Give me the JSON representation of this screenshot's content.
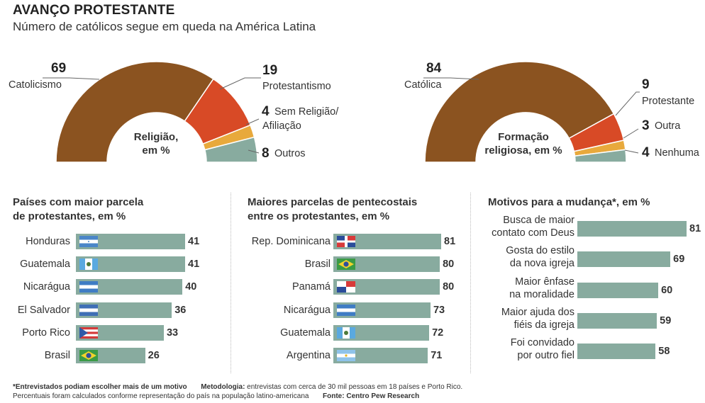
{
  "header": {
    "title": "AVANÇO PROTESTANTE",
    "subtitle": "Número de católicos segue em queda na América Latina"
  },
  "colors": {
    "catholic": "#8b5320",
    "protestant": "#d84a26",
    "none": "#e8a93c",
    "other": "#88ab9f",
    "bar": "#88ab9f"
  },
  "chart_data": [
    {
      "type": "pie",
      "title": "Religião, em %",
      "title_lines": [
        "Religião,",
        "em %"
      ],
      "slices": [
        {
          "name": "Catolicismo",
          "value": 69,
          "label_lines": [
            "Catolicismo"
          ]
        },
        {
          "name": "Protestantismo",
          "value": 19,
          "label_lines": [
            "Protestantismo"
          ]
        },
        {
          "name": "Sem Religião/ Afiliação",
          "value": 4,
          "label_lines": [
            "Sem Religião/",
            "Afiliação"
          ]
        },
        {
          "name": "Outros",
          "value": 8,
          "label_lines": [
            "Outros"
          ]
        }
      ]
    },
    {
      "type": "pie",
      "title": "Formação religiosa, em %",
      "title_lines": [
        "Formação",
        "religiosa, em %"
      ],
      "slices": [
        {
          "name": "Católica",
          "value": 84,
          "label_lines": [
            "Católica"
          ]
        },
        {
          "name": "Protestante",
          "value": 9,
          "label_lines": [
            "Protestante"
          ]
        },
        {
          "name": "Outra",
          "value": 3,
          "label_lines": [
            "Outra"
          ]
        },
        {
          "name": "Nenhuma",
          "value": 4,
          "label_lines": [
            "Nenhuma"
          ]
        }
      ]
    },
    {
      "type": "bar",
      "title": "Países com maior parcela de protestantes, em %",
      "title_lines": [
        "Países com maior parcela",
        "de protestantes, em %"
      ],
      "categories": [
        "Honduras",
        "Guatemala",
        "Nicarágua",
        "El Salvador",
        "Porto Rico",
        "Brasil"
      ],
      "flags": [
        "honduras",
        "guatemala",
        "nicaragua",
        "elsalvador",
        "portorico",
        "brasil"
      ],
      "values": [
        41,
        41,
        40,
        36,
        33,
        26
      ]
    },
    {
      "type": "bar",
      "title": "Maiores parcelas de pentecostais entre os protestantes, em %",
      "title_lines": [
        "Maiores parcelas de pentecostais",
        "entre os protestantes, em %"
      ],
      "categories": [
        "Rep. Dominicana",
        "Brasil",
        "Panamá",
        "Nicarágua",
        "Guatemala",
        "Argentina"
      ],
      "flags": [
        "dominicana",
        "brasil",
        "panama",
        "nicaragua",
        "guatemala",
        "argentina"
      ],
      "values": [
        81,
        80,
        80,
        73,
        72,
        71
      ]
    },
    {
      "type": "bar",
      "title": "Motivos para a mudança*, em %",
      "title_lines": [
        "Motivos para a mudança*, em %"
      ],
      "categories": [
        "Busca de maior contato com Deus",
        "Gosta do estilo da nova igreja",
        "Maior ênfase na moralidade",
        "Maior ajuda dos fiéis da igreja",
        "Foi convidado por outro fiel"
      ],
      "category_lines": [
        [
          "Busca de maior",
          "contato com Deus"
        ],
        [
          "Gosta do estilo",
          "da nova igreja"
        ],
        [
          "Maior ênfase",
          "na moralidade"
        ],
        [
          "Maior ajuda dos",
          "fiéis da igreja"
        ],
        [
          "Foi convidado",
          "por outro fiel"
        ]
      ],
      "values": [
        81,
        69,
        60,
        59,
        58
      ]
    }
  ],
  "footnote": {
    "line1_a": "*Entrevistados podiam escolher mais de um motivo",
    "line1_b_label": "Metodologia:",
    "line1_b": " entrevistas com cerca de 30 mil pessoas em 18 países e Porto Rico.",
    "line2_a": "Percentuais foram calculados conforme representação do país na população latino-americana",
    "line2_b": "Fonte: Centro Pew Research"
  }
}
